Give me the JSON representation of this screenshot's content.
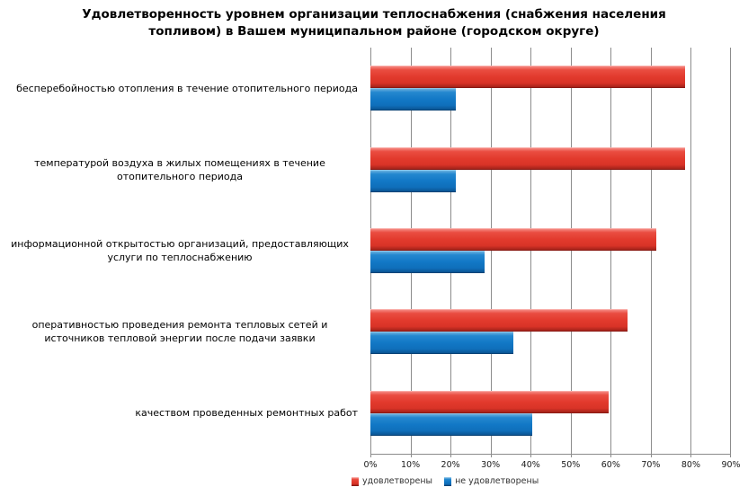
{
  "chart_data": {
    "type": "bar",
    "orientation": "horizontal",
    "title": "Удовлетворенность уровнем организации теплоснабжения (снабжения населения топливом) в Вашем муниципальном районе (городском округе)",
    "categories": [
      "бесперебойностью отопления в течение отопительного периода",
      "температурой воздуха в жилых помещениях в течение отопительного периода",
      "информационной открытостью организаций, предоставляющих услуги по теплоснабжению",
      "оперативностью проведения ремонта тепловых сетей и источников тепловой энергии после подачи заявки",
      "качеством проведенных ремонтных работ"
    ],
    "series": [
      {
        "name": "удовлетворены",
        "color": "#e23a2d",
        "values": [
          78.6,
          78.6,
          71.4,
          64.3,
          59.5
        ]
      },
      {
        "name": "не удовлетворены",
        "color": "#1278c6",
        "values": [
          21.4,
          21.4,
          28.6,
          35.7,
          40.5
        ]
      }
    ],
    "x_ticks": [
      "0%",
      "10%",
      "20%",
      "30%",
      "40%",
      "50%",
      "60%",
      "70%",
      "80%",
      "90%"
    ],
    "xlim": [
      0,
      90
    ],
    "xlabel": "",
    "ylabel": "",
    "grid": "vertical",
    "legend_position": "bottom",
    "gridline_color": "#8c8c8c"
  }
}
